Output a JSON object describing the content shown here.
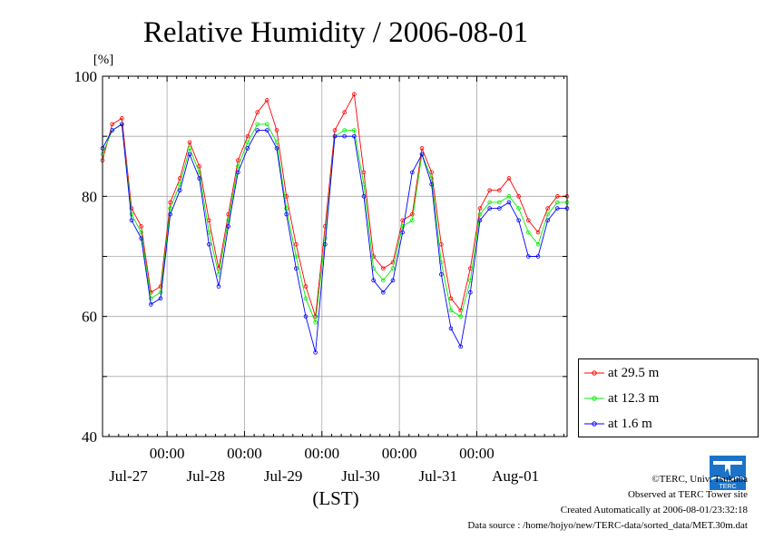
{
  "chart_data": {
    "type": "line",
    "title": "Relative Humidity / 2006-08-01",
    "ylabel": "[%]",
    "xlabel": "(LST)",
    "ylim": [
      40,
      100
    ],
    "y_ticks": [
      40,
      60,
      80,
      100
    ],
    "x_time_labels": [
      "00:00",
      "00:00",
      "00:00",
      "00:00",
      "00:00"
    ],
    "x_date_labels": [
      "Jul-27",
      "Jul-28",
      "Jul-29",
      "Jul-30",
      "Jul-31",
      "Aug-01"
    ],
    "grid": true,
    "legend_position": "right",
    "x_hours": [
      0,
      3,
      6,
      9,
      12,
      15,
      18,
      21,
      24,
      27,
      30,
      33,
      36,
      39,
      42,
      45,
      48,
      51,
      54,
      57,
      60,
      63,
      66,
      69,
      72,
      75,
      78,
      81,
      84,
      87,
      90,
      93,
      96,
      99,
      102,
      105,
      108,
      111,
      114,
      117,
      120,
      123,
      126,
      129,
      132,
      135,
      138,
      141,
      144
    ],
    "series": [
      {
        "name": "at 29.5 m",
        "color": "#ff0000",
        "values": [
          86,
          92,
          93,
          78,
          75,
          64,
          65,
          79,
          83,
          89,
          85,
          76,
          68,
          77,
          86,
          90,
          94,
          96,
          91,
          80,
          72,
          65,
          60,
          75,
          91,
          94,
          97,
          84,
          70,
          68,
          69,
          76,
          77,
          88,
          84,
          72,
          63,
          61,
          68,
          78,
          81,
          81,
          83,
          80,
          76,
          74,
          78,
          80,
          80
        ]
      },
      {
        "name": "at 12.3 m",
        "color": "#00ee00",
        "values": [
          87,
          91,
          92,
          77,
          74,
          63,
          64,
          78,
          82,
          88,
          84,
          74,
          67,
          76,
          85,
          89,
          92,
          92,
          89,
          78,
          70,
          63,
          59,
          73,
          90,
          91,
          91,
          82,
          68,
          66,
          68,
          75,
          76,
          87,
          83,
          69,
          61,
          60,
          66,
          77,
          79,
          79,
          80,
          78,
          74,
          72,
          77,
          79,
          79
        ]
      },
      {
        "name": "at 1.6 m",
        "color": "#0000ff",
        "values": [
          88,
          91,
          92,
          76,
          73,
          62,
          63,
          77,
          81,
          87,
          83,
          72,
          65,
          75,
          84,
          88,
          91,
          91,
          88,
          77,
          68,
          60,
          54,
          72,
          90,
          90,
          90,
          80,
          66,
          64,
          66,
          74,
          84,
          87,
          82,
          67,
          58,
          55,
          64,
          76,
          78,
          78,
          79,
          76,
          70,
          70,
          76,
          78,
          78
        ]
      }
    ]
  },
  "legend": {
    "items": [
      "at 29.5 m",
      "at 12.3 m",
      "at 1.6 m"
    ]
  },
  "credits": {
    "copyright": "©TERC, Univ. Tsukuba",
    "observed": "Observed at TERC Tower site",
    "created": "Created Automatically at 2006-08-01/23:32:18",
    "source": "Data source : /home/hojyo/new/TERC-data/sorted_data/MET.30m.dat"
  },
  "logo": {
    "text": "TERC"
  }
}
